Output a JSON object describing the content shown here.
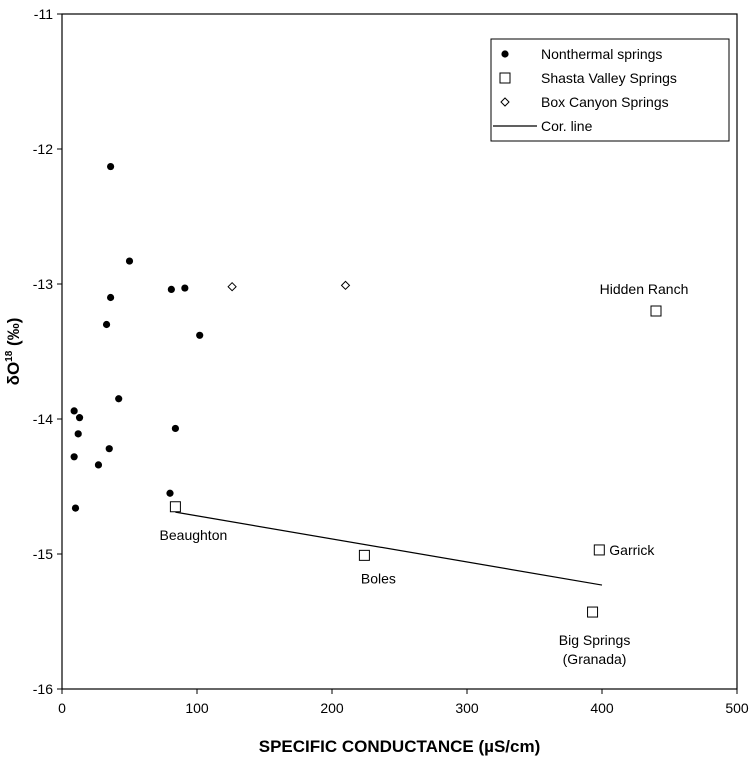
{
  "chart_data": {
    "type": "scatter",
    "xlabel": "SPECIFIC CONDUCTANCE (µS/cm)",
    "ylabel": "δO18 (‰)",
    "xlim": [
      0,
      500
    ],
    "ylim": [
      -16,
      -11
    ],
    "xticks": [
      "0",
      "100",
      "200",
      "300",
      "400",
      "500"
    ],
    "yticks": [
      "-11",
      "-12",
      "-13",
      "-14",
      "-15",
      "-16"
    ],
    "grid": false,
    "legend_position": "top-right",
    "series": [
      {
        "name": "Nonthermal springs",
        "marker": "filled-circle",
        "points": [
          {
            "x": 36,
            "y": -12.13
          },
          {
            "x": 50,
            "y": -12.83
          },
          {
            "x": 36,
            "y": -13.1
          },
          {
            "x": 81,
            "y": -13.04
          },
          {
            "x": 91,
            "y": -13.03
          },
          {
            "x": 33,
            "y": -13.3
          },
          {
            "x": 102,
            "y": -13.38
          },
          {
            "x": 42,
            "y": -13.85
          },
          {
            "x": 9,
            "y": -13.94
          },
          {
            "x": 13,
            "y": -13.99
          },
          {
            "x": 12,
            "y": -14.11
          },
          {
            "x": 84,
            "y": -14.07
          },
          {
            "x": 35,
            "y": -14.22
          },
          {
            "x": 9,
            "y": -14.28
          },
          {
            "x": 27,
            "y": -14.34
          },
          {
            "x": 80,
            "y": -14.55
          },
          {
            "x": 10,
            "y": -14.66
          }
        ]
      },
      {
        "name": "Shasta Valley Springs",
        "marker": "open-square",
        "points": [
          {
            "x": 84,
            "y": -14.65,
            "label": "Beaughton"
          },
          {
            "x": 224,
            "y": -15.01,
            "label": "Boles"
          },
          {
            "x": 398,
            "y": -14.97,
            "label": "Garrick"
          },
          {
            "x": 393,
            "y": -15.43,
            "label": "Big Springs",
            "label2": "(Granada)"
          },
          {
            "x": 440,
            "y": -13.2,
            "label": "Hidden Ranch"
          }
        ]
      },
      {
        "name": "Box Canyon Springs",
        "marker": "open-diamond",
        "points": [
          {
            "x": 126,
            "y": -13.02
          },
          {
            "x": 210,
            "y": -13.01
          }
        ]
      },
      {
        "name": "Cor. line",
        "marker": "line",
        "points": [
          {
            "x": 84,
            "y": -14.69
          },
          {
            "x": 400,
            "y": -15.23
          }
        ]
      }
    ]
  }
}
